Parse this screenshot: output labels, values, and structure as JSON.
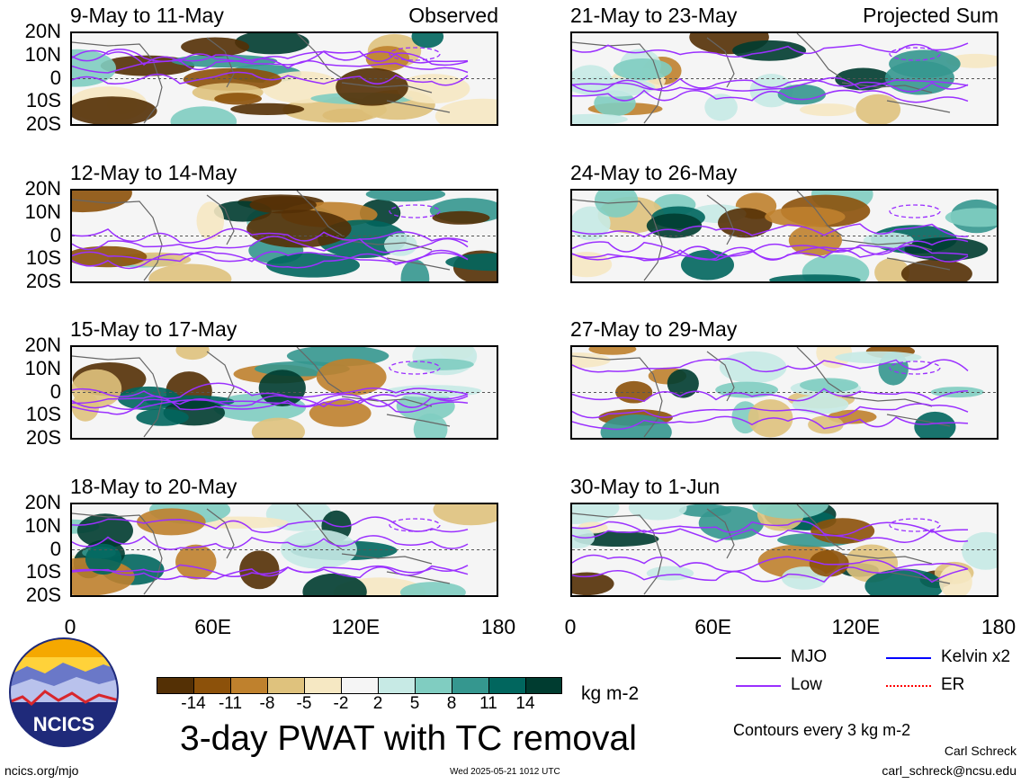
{
  "panels_left": [
    {
      "title": "9-May to 11-May",
      "tag": "Observed"
    },
    {
      "title": "12-May to 14-May",
      "tag": ""
    },
    {
      "title": "15-May to 17-May",
      "tag": ""
    },
    {
      "title": "18-May to 20-May",
      "tag": ""
    }
  ],
  "panels_right": [
    {
      "title": "21-May to 23-May",
      "tag": "Projected Sum"
    },
    {
      "title": "24-May to 26-May",
      "tag": ""
    },
    {
      "title": "27-May to 29-May",
      "tag": ""
    },
    {
      "title": "30-May to 1-Jun",
      "tag": ""
    }
  ],
  "lat_labels": [
    "20N",
    "10N",
    "0",
    "10S",
    "20S"
  ],
  "lon_labels": [
    "0",
    "60E",
    "120E",
    "180"
  ],
  "colorbar": {
    "colors": [
      "#543005",
      "#8c510a",
      "#bf812d",
      "#dfc27d",
      "#f6e8c3",
      "#f5f5f5",
      "#c7eae5",
      "#80cdc1",
      "#35978f",
      "#01665e",
      "#003c30"
    ],
    "labels": [
      "-14",
      "-11",
      "-8",
      "-5",
      "-2",
      "2",
      "5",
      "8",
      "11",
      "14"
    ],
    "units": "kg m-2"
  },
  "main_title": "3-day PWAT with TC removal",
  "legend": {
    "mjo": {
      "label": "MJO",
      "color": "#000000"
    },
    "kelvin": {
      "label": "Kelvin x2",
      "color": "#0000ff"
    },
    "low": {
      "label": "Low",
      "color": "#9b30ff"
    },
    "er": {
      "label": "ER",
      "color": "#ff0000"
    },
    "contour_note": "Contours every 3 kg m-2"
  },
  "logo": {
    "text": "NCICS"
  },
  "footer": {
    "left": "ncics.org/mjo",
    "center": "Wed 2025-05-21 1012 UTC",
    "author": "Carl Schreck",
    "email": "carl_schreck@ncsu.edu"
  }
}
